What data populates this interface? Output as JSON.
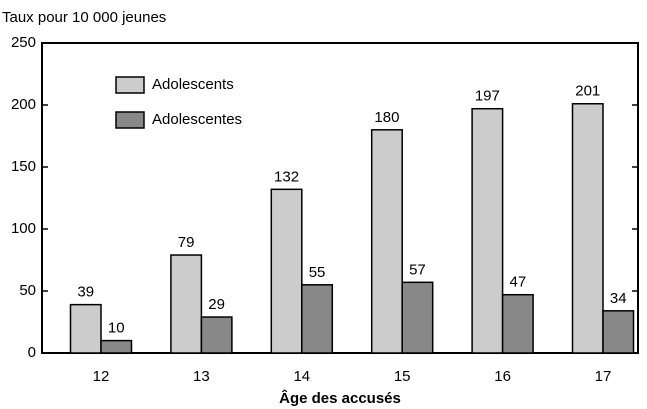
{
  "chart_data": {
    "type": "bar",
    "y_axis_label": "Taux pour 10 000 jeunes",
    "x_axis_label": "Âge des accusés",
    "categories": [
      "12",
      "13",
      "14",
      "15",
      "16",
      "17"
    ],
    "series": [
      {
        "name": "Adolescents",
        "color": "#cccccc",
        "values": [
          39,
          79,
          132,
          180,
          197,
          201
        ]
      },
      {
        "name": "Adolescentes",
        "color": "#888888",
        "values": [
          10,
          29,
          55,
          57,
          47,
          34
        ]
      }
    ],
    "ylim": [
      0,
      250
    ],
    "yticks": [
      0,
      50,
      100,
      150,
      200,
      250
    ],
    "legend": "upper left",
    "grid": false
  }
}
